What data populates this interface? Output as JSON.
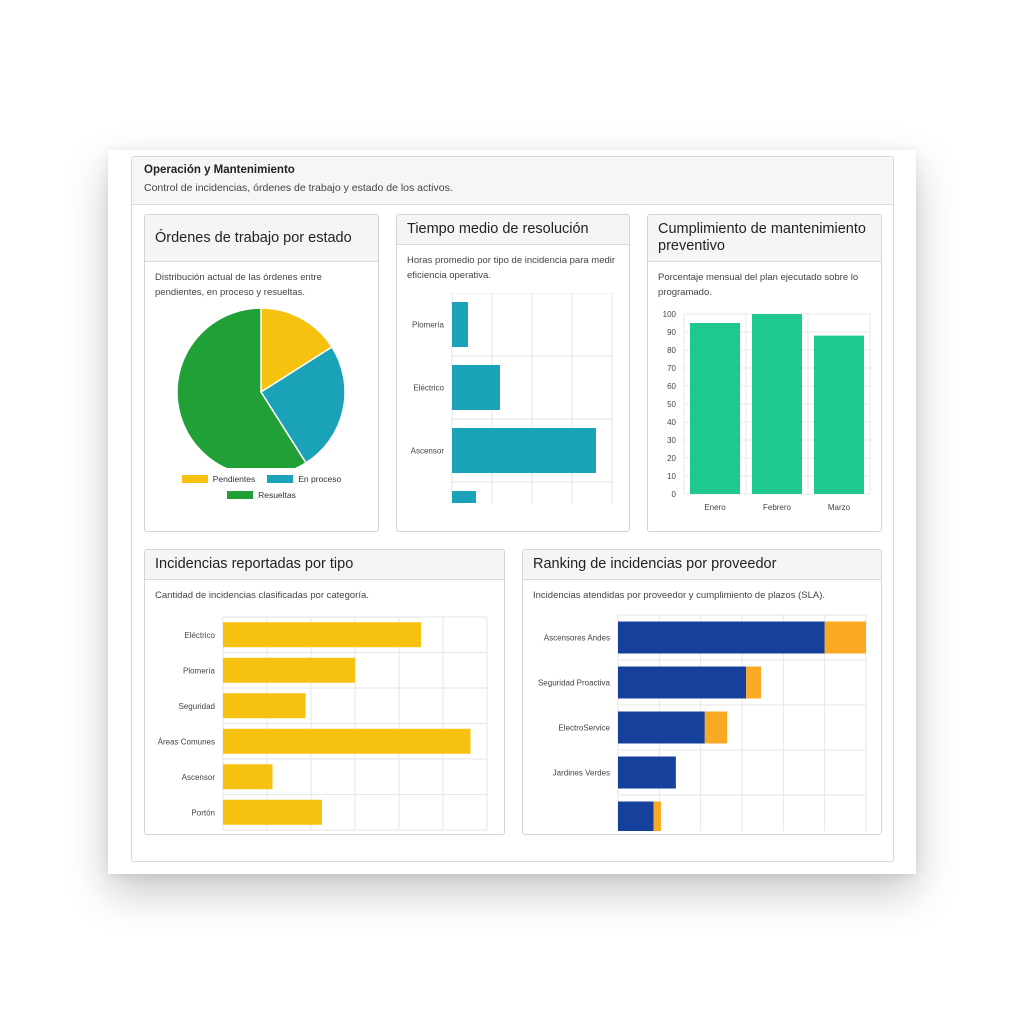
{
  "section": {
    "title": "Operación y Mantenimiento",
    "subtitle": "Control de incidencias, órdenes de trabajo y estado de los activos."
  },
  "cards": {
    "estado": {
      "title": "Órdenes de trabajo por estado",
      "description": "Distribución actual de las órdenes entre pendientes, en proceso y resueltas."
    },
    "tiempo": {
      "title": "Tiempo medio de resolución",
      "description": "Horas promedio por tipo de incidencia para medir eficiencia operativa."
    },
    "cumplimiento": {
      "title": "Cumplimiento de mantenimiento preventivo",
      "description": "Porcentaje mensual del plan ejecutado sobre lo programado."
    },
    "incidencias": {
      "title": "Incidencias reportadas por tipo",
      "description": "Cantidad de incidencias clasificadas por categoría."
    },
    "ranking": {
      "title": "Ranking de incidencias por proveedor",
      "description": "Incidencias atendidas por proveedor y cumplimiento de plazos (SLA)."
    }
  },
  "colors": {
    "yellow": "#f7c10f",
    "teal": "#1aa3b8",
    "green": "#21a038",
    "mint": "#1fc98e",
    "navy": "#15409c",
    "orange": "#f9a923"
  },
  "chart_data": [
    {
      "id": "estado",
      "type": "pie",
      "categories": [
        "Pendientes",
        "En proceso",
        "Resueltas"
      ],
      "values": [
        16,
        25,
        59
      ],
      "colors": [
        "#f7c10f",
        "#1aa3b8",
        "#21a038"
      ],
      "legend": "bottom"
    },
    {
      "id": "tiempo",
      "type": "bar",
      "orientation": "horizontal",
      "categories": [
        "Plomería",
        "Eléctrico",
        "Ascensor",
        ""
      ],
      "values": [
        4,
        12,
        36,
        6
      ],
      "xlim": [
        0,
        40
      ],
      "grid": true
    },
    {
      "id": "cumplimiento",
      "type": "bar",
      "categories": [
        "Enero",
        "Febrero",
        "Marzo"
      ],
      "values": [
        95,
        100,
        88
      ],
      "ylim": [
        0,
        100
      ],
      "yticks": [
        0,
        10,
        20,
        30,
        40,
        50,
        60,
        70,
        80,
        90,
        100
      ],
      "grid": true
    },
    {
      "id": "incidencias",
      "type": "bar",
      "orientation": "horizontal",
      "categories": [
        "Eléctrico",
        "Plomería",
        "Seguridad",
        "Áreas Comunes",
        "Ascensor",
        "Portón"
      ],
      "values": [
        12,
        8,
        5,
        15,
        3,
        6
      ],
      "xlim": [
        0,
        16
      ],
      "grid": true
    },
    {
      "id": "ranking",
      "type": "bar",
      "orientation": "horizontal",
      "stacked": true,
      "categories": [
        "Ascensores Andes",
        "Seguridad Proactiva",
        "ElectroService",
        "Jardines Verdes",
        ""
      ],
      "series": [
        {
          "values": [
            25,
            15.5,
            10.5,
            7,
            4.3
          ]
        },
        {
          "values": [
            5,
            1.8,
            2.7,
            0,
            0.9
          ]
        }
      ],
      "xlim": [
        0,
        30
      ],
      "grid": true
    }
  ]
}
